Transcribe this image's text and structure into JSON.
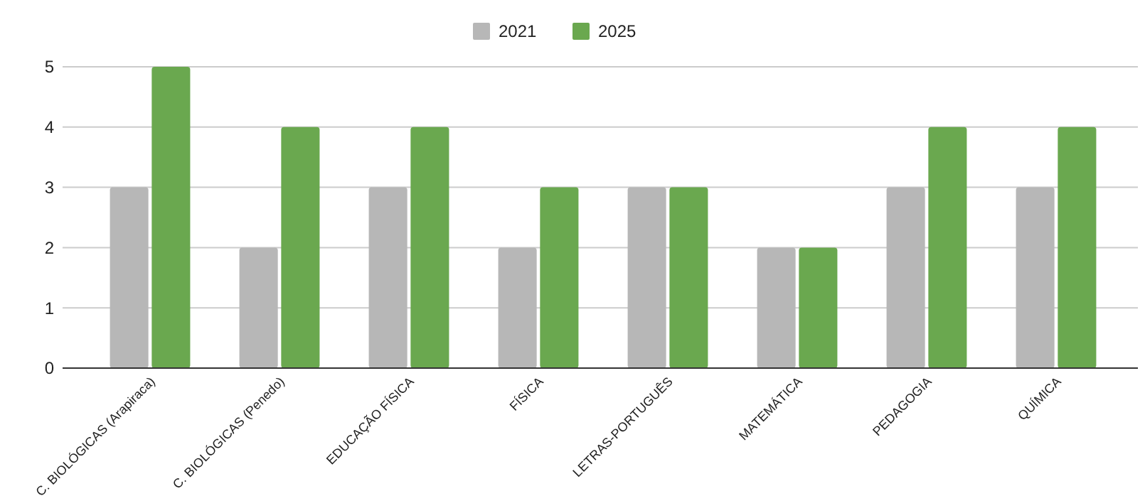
{
  "chart_data": {
    "type": "bar",
    "categories": [
      "C. BIOLÓGICAS (Arapiraca)",
      "C. BIOLÓGICAS (Penedo)",
      "EDUCAÇÃO FÍSICA",
      "FÍSICA",
      "LETRAS-PORTUGUÊS",
      "MATEMÁTICA",
      "PEDAGOGIA",
      "QUÍMICA"
    ],
    "series": [
      {
        "name": "2021",
        "color": "#b7b7b7",
        "values": [
          3,
          2,
          3,
          2,
          3,
          2,
          3,
          3
        ]
      },
      {
        "name": "2025",
        "color": "#6aa84f",
        "values": [
          5,
          4,
          4,
          3,
          3,
          2,
          4,
          4
        ]
      }
    ],
    "ylim": [
      0,
      5
    ],
    "yticks": [
      0,
      1,
      2,
      3,
      4,
      5
    ],
    "grid": "y",
    "legend": "top"
  }
}
